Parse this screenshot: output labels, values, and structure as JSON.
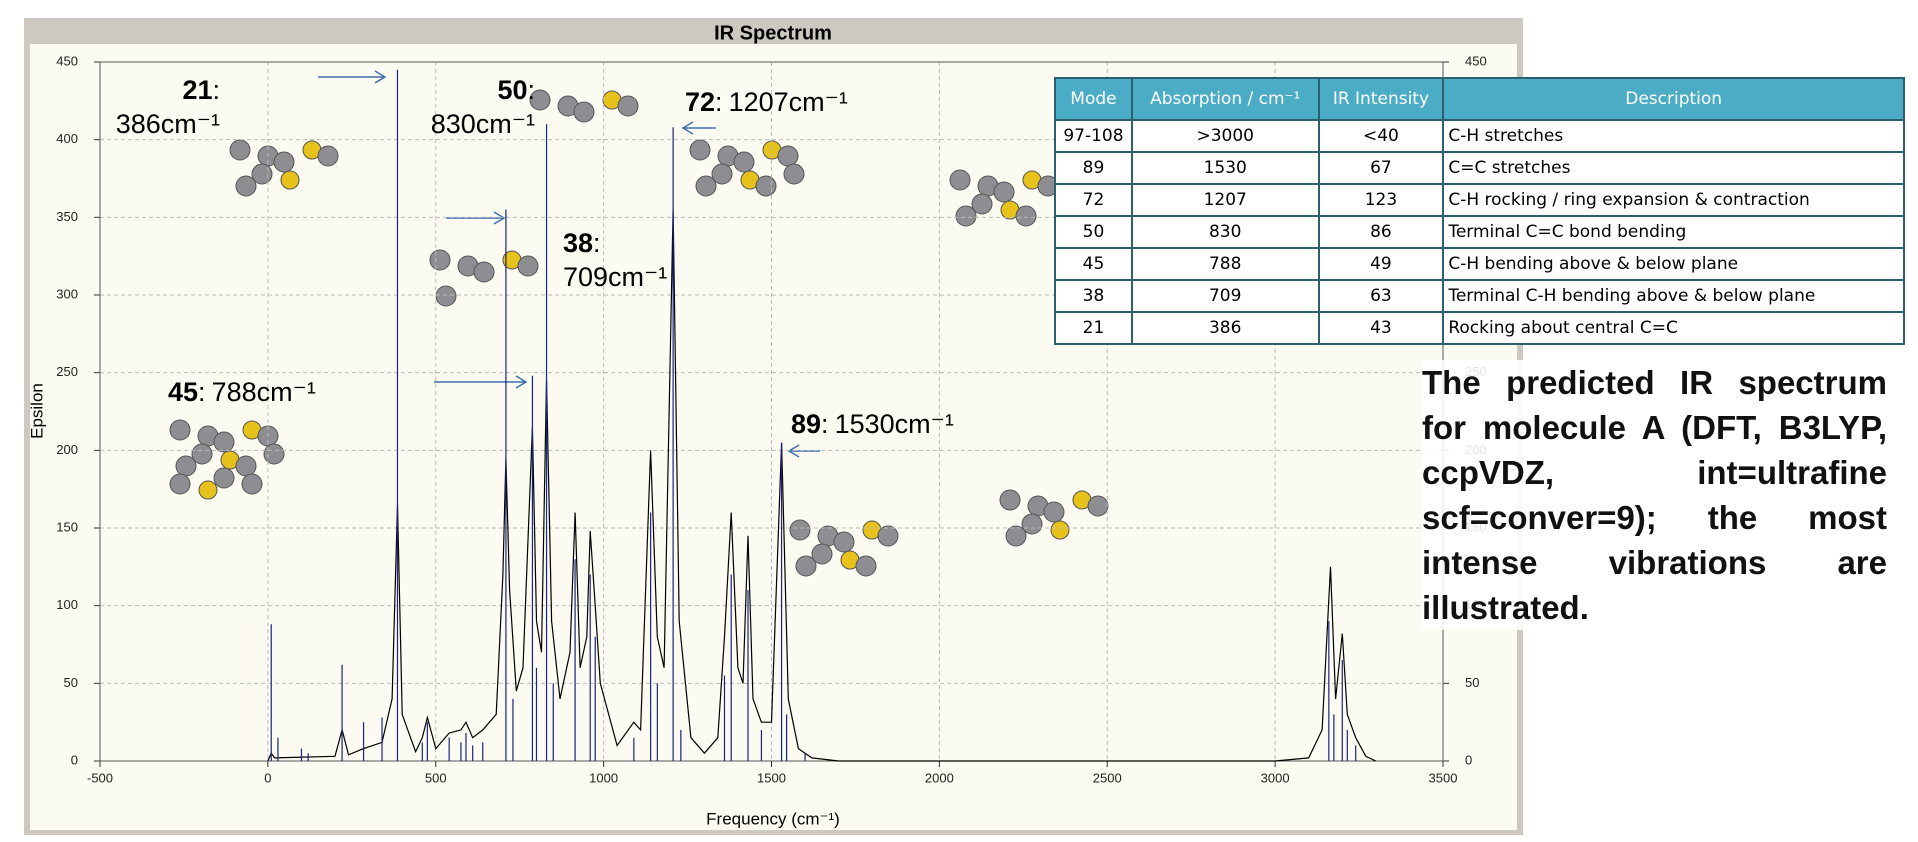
{
  "chart_data": {
    "type": "line",
    "title": "IR Spectrum",
    "x_label": "Frequency (cm⁻¹)",
    "y_label": "Epsilon",
    "xlim": [
      -500,
      3500
    ],
    "xticks": [
      -500,
      0,
      500,
      1000,
      1500,
      2000,
      2500,
      3000,
      3500
    ],
    "ylim": [
      0,
      450
    ],
    "yticks": [
      0,
      50,
      100,
      150,
      200,
      250,
      300,
      350,
      400,
      450
    ],
    "y2lim": [
      0,
      450
    ],
    "y2ticks": [
      0,
      50,
      100,
      150,
      200,
      250,
      300,
      350,
      400,
      450
    ],
    "grid": true,
    "series": [
      {
        "type": "line",
        "color": "#000000",
        "x": [
          0,
          10,
          20,
          200,
          221,
          240,
          285,
          340,
          370,
          386,
          400,
          440,
          460,
          475,
          500,
          540,
          575,
          590,
          610,
          640,
          680,
          700,
          709,
          720,
          740,
          760,
          788,
          800,
          815,
          830,
          845,
          870,
          900,
          915,
          930,
          950,
          960,
          975,
          990,
          1040,
          1090,
          1110,
          1140,
          1160,
          1180,
          1207,
          1225,
          1260,
          1300,
          1340,
          1360,
          1380,
          1400,
          1415,
          1430,
          1445,
          1470,
          1500,
          1530,
          1550,
          1580,
          1620,
          1700,
          3000,
          3100,
          3140,
          3165,
          3180,
          3200,
          3215,
          3240,
          3270,
          3300
        ],
        "values": [
          0,
          5,
          2,
          3,
          20,
          4,
          8,
          12,
          40,
          165,
          30,
          6,
          15,
          28,
          8,
          18,
          20,
          25,
          15,
          20,
          30,
          120,
          195,
          110,
          45,
          60,
          215,
          90,
          70,
          245,
          90,
          40,
          70,
          160,
          60,
          80,
          148,
          100,
          50,
          10,
          25,
          20,
          200,
          80,
          60,
          355,
          90,
          15,
          5,
          15,
          80,
          160,
          60,
          50,
          145,
          40,
          25,
          25,
          205,
          40,
          8,
          2,
          0,
          0,
          2,
          20,
          125,
          40,
          82,
          30,
          15,
          3,
          0
        ]
      },
      {
        "type": "stick",
        "color": "#1a237e",
        "axis": "y2",
        "x": [
          10,
          30,
          100,
          120,
          221,
          285,
          340,
          386,
          460,
          475,
          540,
          575,
          590,
          610,
          640,
          709,
          730,
          788,
          800,
          830,
          850,
          915,
          960,
          975,
          1090,
          1140,
          1160,
          1207,
          1230,
          1360,
          1380,
          1430,
          1470,
          1530,
          1545,
          1600,
          3160,
          3175,
          3200,
          3215,
          3240
        ],
        "values": [
          88,
          15,
          8,
          5,
          62,
          25,
          28,
          445,
          12,
          25,
          15,
          12,
          18,
          10,
          12,
          355,
          40,
          248,
          60,
          410,
          50,
          130,
          120,
          80,
          15,
          160,
          50,
          408,
          20,
          55,
          120,
          110,
          20,
          205,
          30,
          5,
          90,
          30,
          65,
          20,
          10
        ]
      }
    ],
    "annotations": [
      {
        "mode": "21",
        "text": ":",
        "freq": "386cm⁻¹"
      },
      {
        "mode": "50",
        "text": ":",
        "freq": "830cm⁻¹"
      },
      {
        "mode": "72",
        "text": ":",
        "freq": "1207cm⁻¹"
      },
      {
        "mode": "38",
        "text": ":",
        "freq": "709cm⁻¹"
      },
      {
        "mode": "45",
        "text": ":",
        "freq": "788cm⁻¹"
      },
      {
        "mode": "89",
        "text": ":",
        "freq": "1530cm⁻¹"
      }
    ]
  },
  "table": {
    "columns": [
      "Mode",
      "Absorption / cm⁻¹",
      "IR Intensity",
      "Description"
    ],
    "rows": [
      [
        "97-108",
        ">3000",
        "<40",
        "C-H stretches"
      ],
      [
        "89",
        "1530",
        "67",
        "C=C stretches"
      ],
      [
        "72",
        "1207",
        "123",
        "C-H rocking / ring expansion & contraction"
      ],
      [
        "50",
        "830",
        "86",
        "Terminal C=C bond bending"
      ],
      [
        "45",
        "788",
        "49",
        "C-H bending above & below plane"
      ],
      [
        "38",
        "709",
        "63",
        "Terminal C-H bending above & below plane"
      ],
      [
        "21",
        "386",
        "43",
        "Rocking about central C=C"
      ]
    ]
  },
  "caption": "The predicted IR spectrum for molecule A (DFT, B3LYP, ccpVDZ, int=ultrafine scf=conver=9); the most intense vibrations are illustrated."
}
